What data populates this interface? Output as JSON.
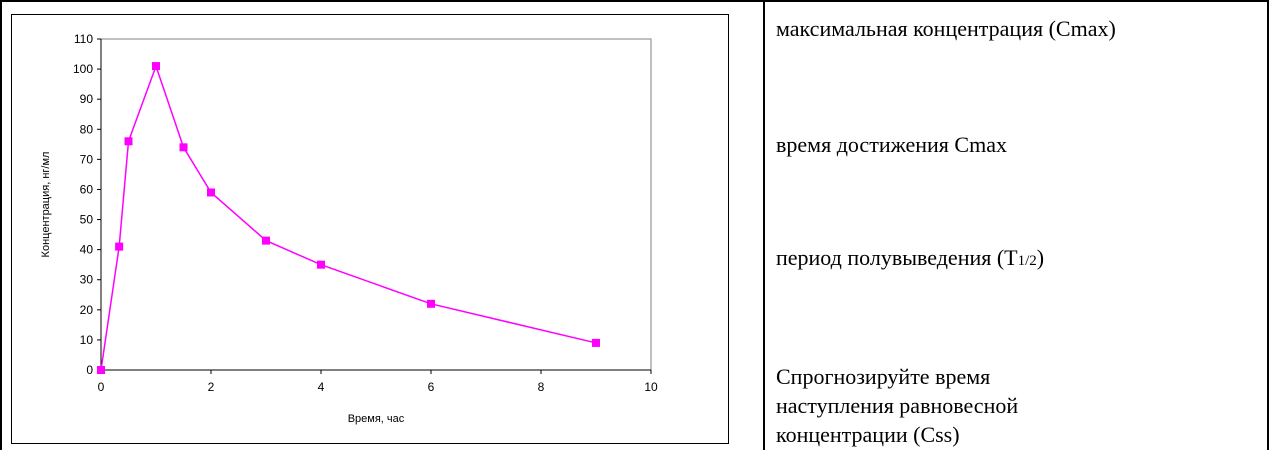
{
  "chart_data": {
    "type": "line",
    "xlabel": "Время, час",
    "ylabel": "Концентрация, нг/мл",
    "xlim": [
      0,
      10
    ],
    "ylim": [
      0,
      110
    ],
    "xticks": [
      "0",
      "2",
      "4",
      "6",
      "8",
      "10"
    ],
    "yticks": [
      "0",
      "10",
      "20",
      "30",
      "40",
      "50",
      "60",
      "70",
      "80",
      "90",
      "100",
      "110"
    ],
    "x": [
      0,
      0.33,
      0.5,
      1,
      1.5,
      2,
      3,
      4,
      6,
      9
    ],
    "y": [
      0,
      41,
      76,
      101,
      74,
      59,
      43,
      35,
      22,
      9
    ],
    "series_color": "#ff00ff",
    "marker": "square",
    "grid": false
  },
  "notes": {
    "cmax": "максимальная концентрация (Cmax)",
    "tmax": "время достижения Cmax",
    "half_life_prefix": "период полувыведения (T",
    "half_life_sub": "1/2",
    "half_life_suffix": ")",
    "css": "Спрогнозируйте время наступления равновесной концентрации (Css)"
  }
}
